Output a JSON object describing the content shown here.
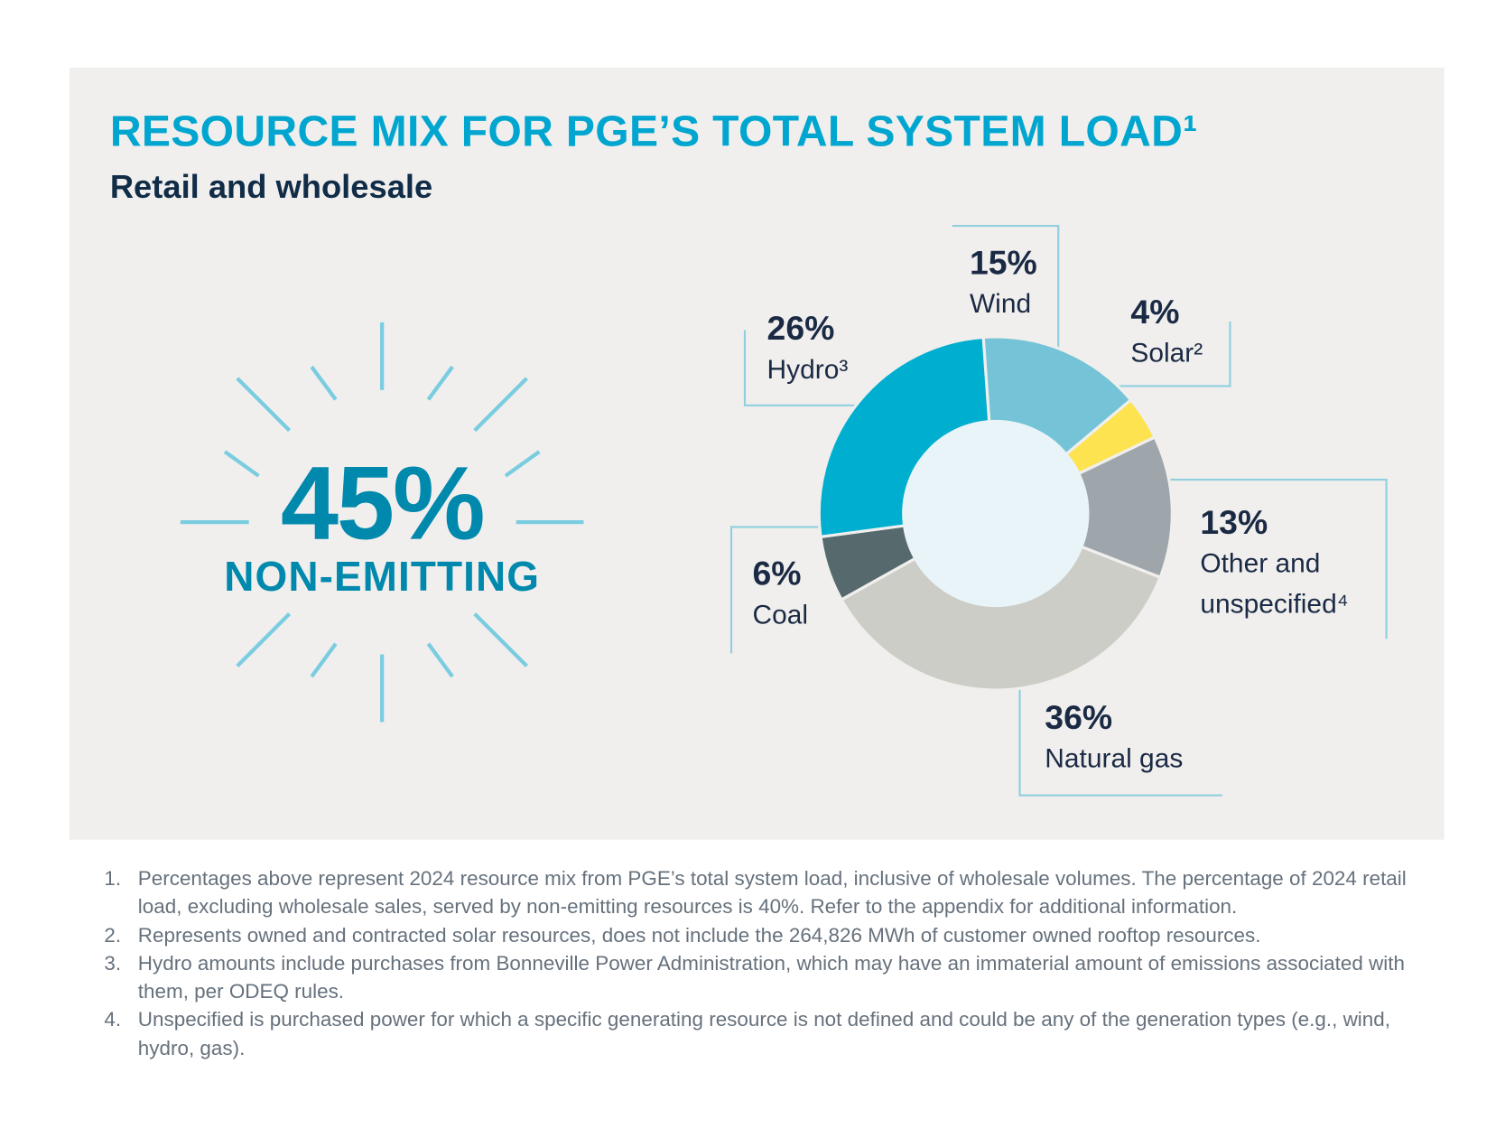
{
  "title": "RESOURCE MIX FOR PGE’S TOTAL SYSTEM LOAD¹",
  "subtitle": "Retail and wholesale",
  "highlight": {
    "value": "45%",
    "label": "NON-EMITTING"
  },
  "chart_data": {
    "type": "pie",
    "variant": "donut",
    "title": "RESOURCE MIX FOR PGE’S TOTAL SYSTEM LOAD¹",
    "subtitle": "Retail and wholesale",
    "slices": [
      {
        "label": "Wind",
        "value": 15,
        "pct_label": "15%",
        "color": "#74c3d7"
      },
      {
        "label": "Solar²",
        "value": 4,
        "pct_label": "4%",
        "color": "#fde350"
      },
      {
        "label": "Other and unspecified⁴",
        "label_line1": "Other and",
        "label_line2": "unspecified⁴",
        "value": 13,
        "pct_label": "13%",
        "color": "#9ea6ab"
      },
      {
        "label": "Natural gas",
        "value": 36,
        "pct_label": "36%",
        "color": "#cdcdc7"
      },
      {
        "label": "Coal",
        "value": 6,
        "pct_label": "6%",
        "color": "#566a6e"
      },
      {
        "label": "Hydro³",
        "value": 26,
        "pct_label": "26%",
        "color": "#00afd0"
      }
    ]
  },
  "footnotes": [
    {
      "num": "1.",
      "text": "Percentages above represent 2024 resource mix from PGE’s total system load, inclusive of wholesale volumes. The percentage of 2024 retail load, excluding wholesale sales, served by non-emitting resources is 40%. Refer to the appendix for additional information."
    },
    {
      "num": "2.",
      "text": "Represents owned and contracted solar resources, does not include the 264,826 MWh of customer owned rooftop resources."
    },
    {
      "num": "3.",
      "text": "Hydro amounts include purchases from Bonneville Power Administration, which may have an immaterial amount of emissions associated with them, per ODEQ rules."
    },
    {
      "num": "4.",
      "text": "Unspecified is purchased power for which a specific generating resource is not defined and could be any of the generation types (e.g., wind, hydro, gas)."
    }
  ]
}
